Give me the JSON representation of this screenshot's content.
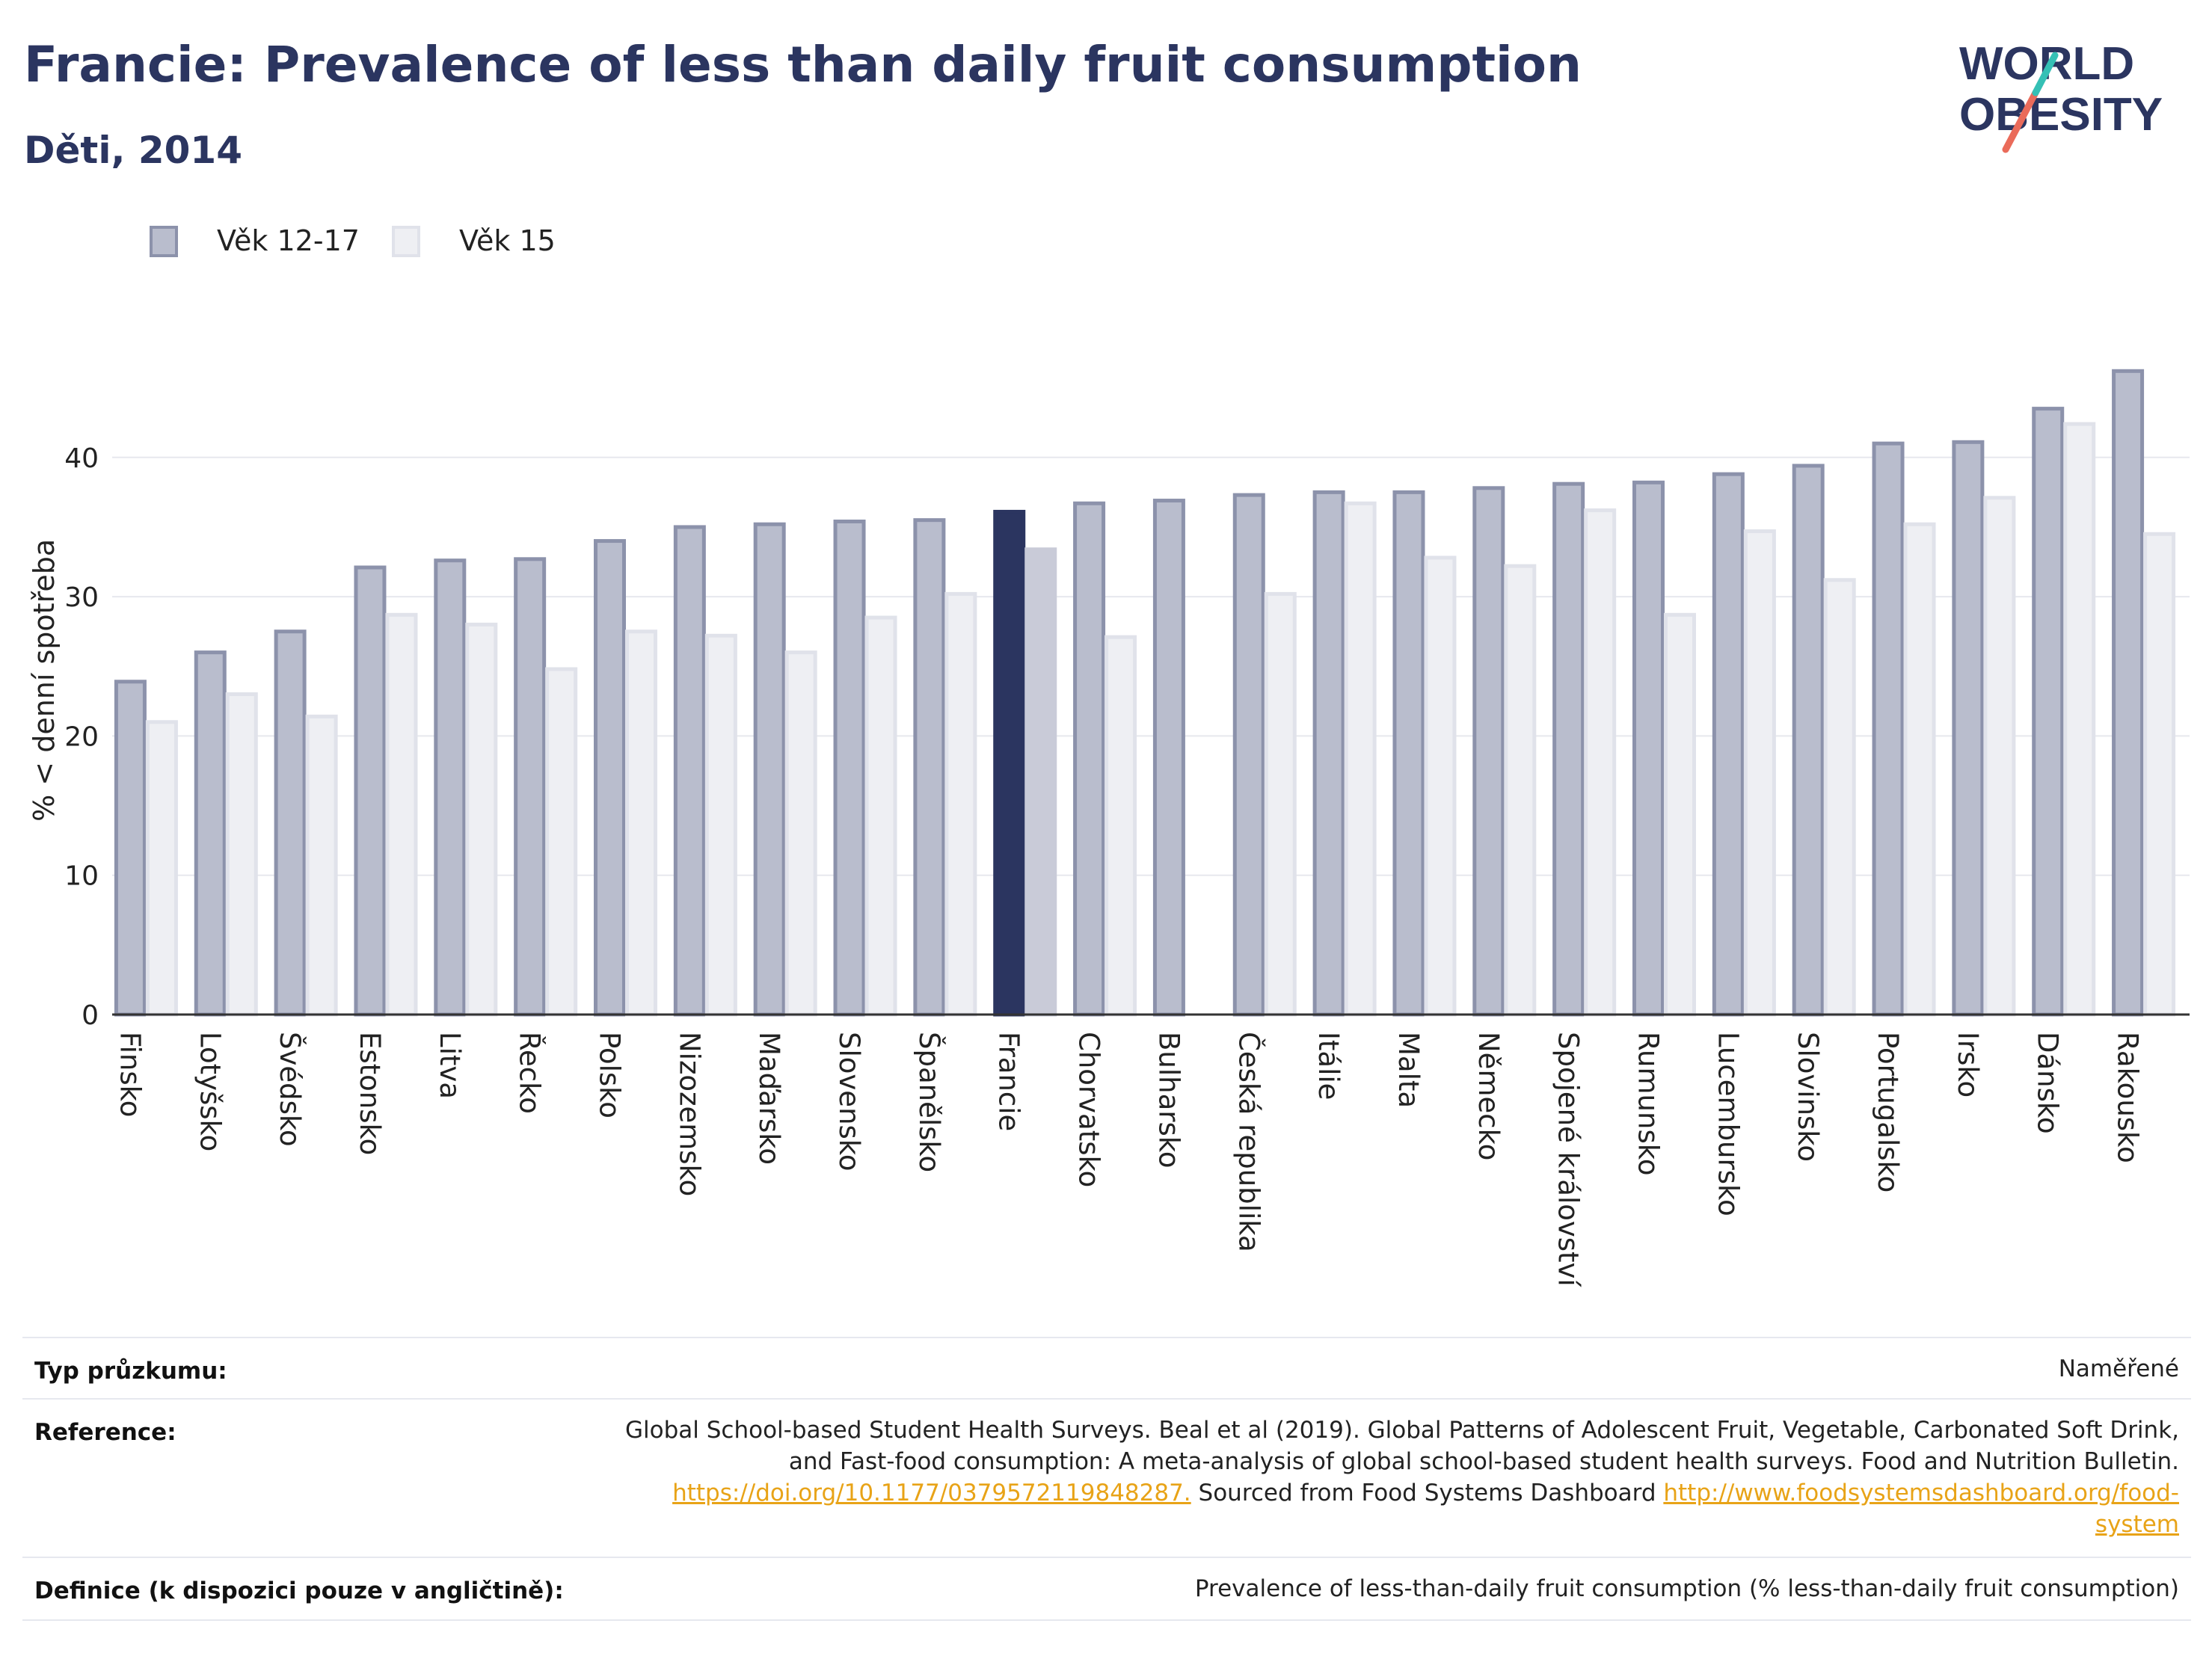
{
  "header": {
    "title": "Francie: Prevalence of less than daily fruit consumption",
    "subtitle": "Děti, 2014"
  },
  "logo": {
    "line1": "WORLD",
    "line2": "OBESITY"
  },
  "legend": [
    {
      "label": "Věk 12-17",
      "color": "#b9bdcd",
      "border": "#8c92ab"
    },
    {
      "label": "Věk 15",
      "color": "#eeeff3",
      "border": "#e0e2ea"
    }
  ],
  "colors": {
    "highlight_primary": "#2b3560",
    "highlight_secondary": "#c9cbd8",
    "bar_primary": "#b9bdcd",
    "bar_primary_border": "#8c92ab",
    "bar_secondary": "#eeeff3",
    "bar_secondary_border": "#e0e2ea",
    "grid": "#e7e8ee",
    "axis": "#333333"
  },
  "chart_data": {
    "type": "bar",
    "ylabel": "% < denní spotřeba",
    "xlabel": "",
    "ylim": [
      0,
      48
    ],
    "yticks": [
      0,
      10,
      20,
      30,
      40
    ],
    "grid": true,
    "legend_position": "top-left",
    "highlight_category": "Francie",
    "categories": [
      "Finsko",
      "Lotyšsko",
      "Švédsko",
      "Estonsko",
      "Litva",
      "Řecko",
      "Polsko",
      "Nizozemsko",
      "Maďarsko",
      "Slovensko",
      "Španělsko",
      "Francie",
      "Chorvatsko",
      "Bulharsko",
      "Česká republika",
      "Itálie",
      "Malta",
      "Německo",
      "Spojené království",
      "Rumunsko",
      "Lucembursko",
      "Slovinsko",
      "Portugalsko",
      "Irsko",
      "Dánsko",
      "Rakousko"
    ],
    "series": [
      {
        "name": "Věk 12-17",
        "values": [
          23.9,
          26.0,
          27.5,
          32.1,
          32.6,
          32.7,
          34.0,
          35.0,
          35.2,
          35.4,
          35.5,
          36.1,
          36.7,
          36.9,
          37.3,
          37.5,
          37.5,
          37.8,
          38.1,
          38.2,
          38.8,
          39.4,
          41.0,
          41.1,
          43.5,
          46.2
        ]
      },
      {
        "name": "Věk 15",
        "values": [
          21.0,
          23.0,
          21.4,
          28.7,
          28.0,
          24.8,
          27.5,
          27.2,
          26.0,
          28.5,
          30.2,
          33.4,
          27.1,
          null,
          30.2,
          36.7,
          32.8,
          32.2,
          36.2,
          28.7,
          34.7,
          31.2,
          35.2,
          37.1,
          42.4,
          34.5
        ]
      }
    ]
  },
  "footer": {
    "survey_label": "Typ průzkumu:",
    "survey_value": "Naměřené",
    "reference_label": "Reference:",
    "reference_line1": "Global School-based Student Health Surveys. Beal et al (2019). Global Patterns of Adolescent Fruit, Vegetable, Carbonated Soft Drink,",
    "reference_line2": "and Fast-food consumption: A meta-analysis of global school-based student health surveys. Food and Nutrition Bulletin.",
    "reference_doi": "https://doi.org/10.1177/0379572119848287.",
    "reference_sourced": " Sourced from Food Systems Dashboard ",
    "reference_url_part1": "http://www.foodsystemsdashboard.org/food-",
    "reference_url_part2": "system",
    "definition_label": "Definice (k dispozici pouze v angličtině):",
    "definition_value": "Prevalence of less-than-daily fruit consumption (% less-than-daily fruit consumption)"
  }
}
